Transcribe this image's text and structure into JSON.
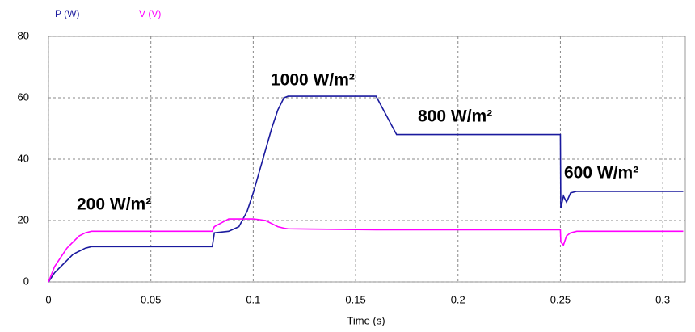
{
  "chart_data": {
    "type": "line",
    "x_label": "Time (s)",
    "x": [
      0,
      0.003,
      0.006,
      0.009,
      0.012,
      0.015,
      0.018,
      0.021,
      0.025,
      0.08,
      0.081,
      0.088,
      0.093,
      0.097,
      0.1,
      0.103,
      0.106,
      0.109,
      0.112,
      0.115,
      0.117,
      0.16,
      0.17,
      0.25,
      0.2502,
      0.2515,
      0.253,
      0.255,
      0.258,
      0.31
    ],
    "series": [
      {
        "name": "P (W)",
        "color": "#1a1a9e",
        "values": [
          0,
          3,
          5,
          7,
          9,
          10,
          11,
          11.5,
          11.5,
          11.5,
          16,
          16.5,
          18,
          23,
          29,
          36,
          43,
          50,
          56,
          60,
          60.5,
          60.5,
          48,
          48,
          24,
          28,
          26,
          29,
          29.5,
          29.5
        ]
      },
      {
        "name": "V (V)",
        "color": "#ff00ff",
        "values": [
          0,
          5,
          8,
          11,
          13,
          15,
          16,
          16.5,
          16.5,
          16.5,
          18,
          20.5,
          20.5,
          20.5,
          20.5,
          20.3,
          20,
          19,
          18,
          17.5,
          17.3,
          17,
          17,
          17,
          13,
          12,
          15,
          16,
          16.5,
          16.5
        ]
      }
    ],
    "annotations": [
      "200 W/m²",
      "1000 W/m²",
      "800 W/m²",
      "600 W/m²"
    ],
    "xlim": [
      0,
      0.311
    ],
    "ylim": [
      0,
      80
    ],
    "xticks": [
      0,
      0.05,
      0.1,
      0.15,
      0.2,
      0.25,
      0.3
    ],
    "yticks": [
      0,
      20,
      40,
      60,
      80
    ],
    "grid": true
  }
}
